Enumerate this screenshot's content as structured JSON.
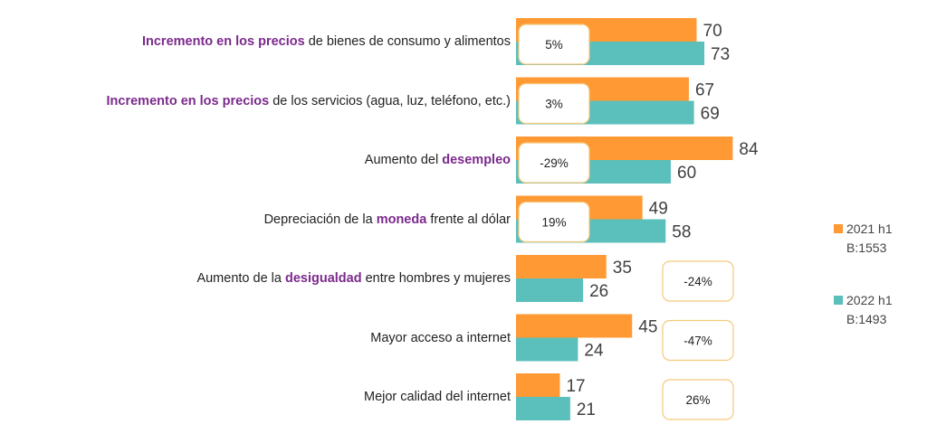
{
  "colors": {
    "s2021": "#ff9933",
    "s2022": "#5bbfbc",
    "highlight": "#7b2a8c",
    "box_border": "#f5c87a"
  },
  "legend": [
    {
      "name": "2021 h1",
      "base": "B:1553",
      "color": "#ff9933"
    },
    {
      "name": "2022 h1",
      "base": "B:1493",
      "color": "#5bbfbc"
    }
  ],
  "chart_data": {
    "type": "bar",
    "orientation": "horizontal",
    "categories": [
      "Incremento en los precios de bienes de consumo y alimentos",
      "Incremento en los precios de los servicios (agua, luz, teléfono, etc.)",
      "Aumento del desempleo",
      "Depreciación de la moneda frente al dólar",
      "Aumento de la desigualdad entre hombres y mujeres",
      "Mayor acceso a internet",
      "Mejor calidad del internet"
    ],
    "category_parts": [
      {
        "pre": "",
        "hl": "Incremento en los precios",
        "post": " de bienes de consumo y alimentos"
      },
      {
        "pre": "",
        "hl": "Incremento en los precios",
        "post": " de los servicios (agua, luz, teléfono, etc.)"
      },
      {
        "pre": "Aumento del ",
        "hl": "desempleo",
        "post": ""
      },
      {
        "pre": "Depreciación de la ",
        "hl": "moneda",
        "post": " frente al dólar"
      },
      {
        "pre": "Aumento de la ",
        "hl": "desigualdad",
        "post": " entre hombres y mujeres"
      },
      {
        "pre": "Mayor acceso a internet",
        "hl": "",
        "post": ""
      },
      {
        "pre": "Mejor calidad del internet",
        "hl": "",
        "post": ""
      }
    ],
    "series": [
      {
        "name": "2021 h1",
        "values": [
          70,
          67,
          84,
          49,
          35,
          45,
          17
        ]
      },
      {
        "name": "2022 h1",
        "values": [
          73,
          69,
          60,
          58,
          26,
          24,
          21
        ]
      }
    ],
    "changes": [
      "5%",
      "3%",
      "-29%",
      "19%",
      "-24%",
      "-47%",
      "26%"
    ],
    "xlim": [
      0,
      100
    ],
    "legend_position": "right"
  }
}
